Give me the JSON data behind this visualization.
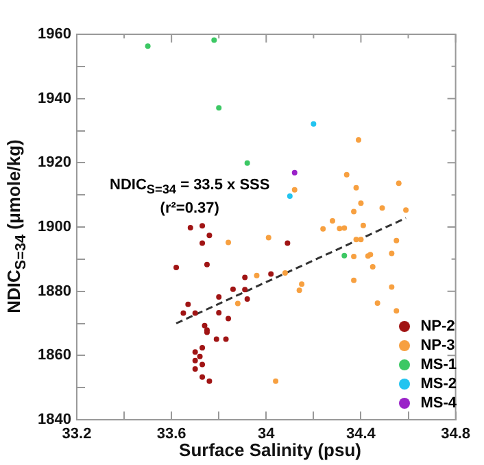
{
  "chart_data": {
    "type": "scatter",
    "xlabel": "Surface Salinity (psu)",
    "ylabel": "NDIC$_{S=34}$ (μmole/kg)",
    "annotations": [
      "NDIC$_{S=34}$ = 33.5 x SSS",
      "(r²=0.37)"
    ],
    "xlim": [
      33.2,
      34.8
    ],
    "xticks": [
      33.2,
      {
        "value": 33.4,
        "label": null
      },
      33.6,
      {
        "value": 33.8,
        "label": null
      },
      34,
      {
        "value": 34.2,
        "label": null
      },
      34.4,
      {
        "value": 34.6,
        "label": null
      },
      34.8
    ],
    "ylim": [
      1840,
      1960
    ],
    "yticks": [
      1840,
      {
        "value": 1850,
        "label": null
      },
      1860,
      {
        "value": 1870,
        "label": null
      },
      1880,
      {
        "value": 1890,
        "label": null
      },
      1900,
      {
        "value": 1910,
        "label": null
      },
      1920,
      {
        "value": 1930,
        "label": null
      },
      1940,
      {
        "value": 1950,
        "label": null
      },
      1960
    ],
    "legend": "bottom right",
    "marker": "circle",
    "series": [
      {
        "name": "NP-2",
        "color": "#a01414",
        "x": [
          33.68,
          33.73,
          33.76,
          33.73,
          34.09,
          33.62,
          33.75,
          33.91,
          34.02,
          33.86,
          33.91,
          33.92,
          33.8,
          33.67,
          33.65,
          33.7,
          33.8,
          33.84,
          33.74,
          33.75,
          33.75,
          33.79,
          33.83,
          33.73,
          33.7,
          33.72,
          33.7,
          33.73,
          33.7,
          33.73,
          33.76
        ],
        "values": [
          1899.8,
          1900.4,
          1897.4,
          1895,
          1895,
          1887.4,
          1888.3,
          1884.3,
          1885.4,
          1880.6,
          1880.5,
          1877.6,
          1878.2,
          1875.9,
          1873.2,
          1873.2,
          1873.3,
          1871.5,
          1869.3,
          1867.9,
          1867.2,
          1865.1,
          1865.1,
          1862.4,
          1861.1,
          1859.7,
          1858.4,
          1857.2,
          1855.8,
          1853.3,
          1852
        ]
      },
      {
        "name": "NP-3",
        "color": "#f7a040",
        "x": [
          34.12,
          34.39,
          34.34,
          34.38,
          34.56,
          34.4,
          34.49,
          34.59,
          34.37,
          34.28,
          34.41,
          34.24,
          34.31,
          34.33,
          33.84,
          34.01,
          33.96,
          33.88,
          34.08,
          34.14,
          34.15,
          34.04,
          34.38,
          34.4,
          34.37,
          34.43,
          34.44,
          34.37,
          34.45,
          34.53,
          34.55,
          34.53,
          34.47,
          34.55
        ],
        "values": [
          1911.6,
          1927.1,
          1916.3,
          1912.2,
          1913.6,
          1907.4,
          1905.9,
          1905.3,
          1904.8,
          1901.9,
          1900.5,
          1899.4,
          1899.5,
          1899.7,
          1895.2,
          1896.7,
          1884.9,
          1876.2,
          1885.7,
          1880.3,
          1882.2,
          1852,
          1896.1,
          1896.1,
          1890.8,
          1891,
          1891.4,
          1883.4,
          1887.6,
          1891.8,
          1895.8,
          1881.3,
          1876.3,
          1873.9
        ]
      },
      {
        "name": "MS-1",
        "color": "#3cc864",
        "x": [
          33.5,
          33.78,
          33.8,
          33.92,
          34.33
        ],
        "values": [
          1956.3,
          1958.2,
          1937.1,
          1919.9,
          1891.1
        ]
      },
      {
        "name": "MS-2",
        "color": "#22c4f0",
        "x": [
          34.2,
          34.1
        ],
        "values": [
          1932.1,
          1909.6
        ]
      },
      {
        "name": "MS-4",
        "color": "#9a22c8",
        "x": [
          34.12
        ],
        "values": [
          1916.9
        ]
      },
      {
        "type": "line",
        "color": "#333333",
        "line_style": "dashed",
        "marker": "none",
        "x": [
          33.62,
          34.59
        ],
        "values": [
          1870,
          1902.8
        ]
      }
    ]
  }
}
